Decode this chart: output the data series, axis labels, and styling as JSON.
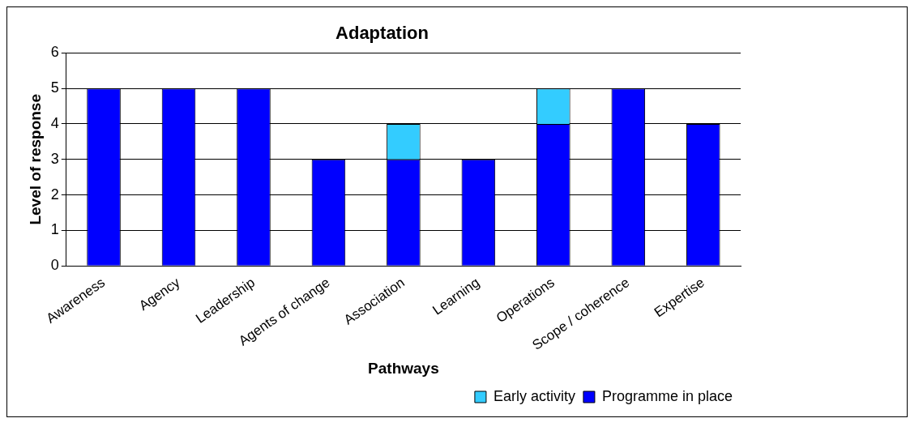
{
  "chart_data": {
    "type": "bar",
    "title": "Adaptation",
    "xlabel": "Pathways",
    "ylabel": "Level of response",
    "categories": [
      "Awareness",
      "Agency",
      "Leadership",
      "Agents of change",
      "Association",
      "Learning",
      "Operations",
      "Scope / coherence",
      "Expertise"
    ],
    "series": [
      {
        "name": "Programme in place",
        "color": "#0000ff",
        "values": [
          5,
          5,
          5,
          3,
          3,
          3,
          4,
          5,
          4
        ]
      },
      {
        "name": "Early activity",
        "color": "#33ccff",
        "values": [
          null,
          null,
          null,
          null,
          1,
          null,
          1,
          null,
          null
        ]
      }
    ],
    "stacked": true,
    "ylim": [
      0,
      6
    ],
    "yticks": [
      0,
      1,
      2,
      3,
      4,
      5,
      6
    ],
    "grid": "y",
    "legend": "bottom right"
  }
}
